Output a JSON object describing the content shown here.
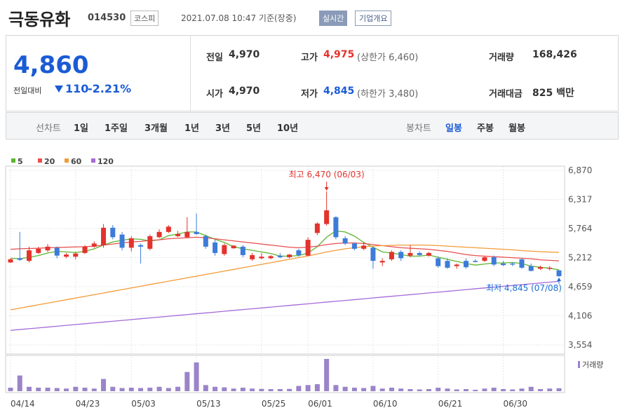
{
  "header": {
    "name": "극동유화",
    "code": "014530",
    "market": "코스피",
    "time": "2021.07.08 10:47 기준(장중)",
    "realtime": "실시간",
    "company": "기업개요"
  },
  "quote": {
    "price": "4,860",
    "diff_label": "전일대비",
    "diff": "110",
    "rate": "-2.21%",
    "items": [
      {
        "label": "전일",
        "value": "4,970"
      },
      {
        "label": "고가",
        "value": "4,975",
        "extra": "(상한가 6,460)"
      },
      {
        "label": "거래량",
        "value": "168,426"
      },
      {
        "label": "시가",
        "value": "4,970"
      },
      {
        "label": "저가",
        "value": "4,845",
        "extra": "(하한가 3,480)"
      },
      {
        "label": "거래대금",
        "value": "825 백만"
      }
    ]
  },
  "tabs": {
    "line": "선차트",
    "line_periods": [
      "1일",
      "1주일",
      "3개월",
      "1년",
      "3년",
      "5년",
      "10년"
    ],
    "candle": "봉차트",
    "candle_periods": [
      "일봉",
      "주봉",
      "월봉"
    ]
  },
  "chart_data": {
    "type": "candlestick",
    "categories": [
      "04/14",
      null,
      null,
      null,
      null,
      null,
      null,
      "04/23",
      null,
      null,
      null,
      null,
      null,
      "05/03",
      null,
      null,
      null,
      null,
      null,
      null,
      "05/13",
      null,
      null,
      null,
      null,
      null,
      null,
      "05/25",
      null,
      null,
      null,
      null,
      "06/01",
      null,
      null,
      null,
      null,
      null,
      null,
      "06/10",
      null,
      null,
      null,
      null,
      null,
      null,
      "06/21",
      null,
      null,
      null,
      null,
      null,
      null,
      "06/30",
      null,
      null,
      null,
      null,
      null,
      null
    ],
    "candles": {
      "open": [
        5120,
        5200,
        5150,
        5300,
        5350,
        5400,
        5230,
        5230,
        5300,
        5420,
        5450,
        5780,
        5650,
        5400,
        5450,
        5380,
        5600,
        5700,
        5620,
        5600,
        5700,
        5620,
        5500,
        5280,
        5390,
        5420,
        5180,
        5200,
        5200,
        5250,
        5220,
        5350,
        5250,
        5680,
        5850,
        5980,
        5580,
        5480,
        5380,
        5400,
        5120,
        5180,
        5320,
        5250,
        5300,
        5250,
        5200,
        5150,
        5050,
        5150,
        5150,
        5150,
        5220,
        5100,
        5100,
        5180,
        5050,
        5000,
        5000,
        4970
      ],
      "high": [
        5200,
        5700,
        5420,
        5420,
        5470,
        5420,
        5300,
        5320,
        5450,
        5520,
        5850,
        5830,
        5700,
        5620,
        5480,
        5650,
        5750,
        5830,
        5720,
        5980,
        6050,
        5650,
        5550,
        5480,
        5450,
        5450,
        5300,
        5300,
        5260,
        5300,
        5280,
        5380,
        5600,
        5880,
        6470,
        6000,
        5620,
        5500,
        5500,
        5420,
        5200,
        5350,
        5350,
        5450,
        5330,
        5320,
        5230,
        5200,
        5100,
        5200,
        5180,
        5230,
        5250,
        5150,
        5120,
        5200,
        5100,
        5060,
        5050,
        4975
      ],
      "low": [
        5110,
        5150,
        5120,
        5280,
        5320,
        5200,
        5200,
        5180,
        5280,
        5400,
        5400,
        5560,
        5350,
        5330,
        5100,
        5350,
        5580,
        5680,
        5600,
        5580,
        5640,
        5380,
        5250,
        5250,
        5380,
        5220,
        5150,
        5180,
        5180,
        5200,
        5200,
        5230,
        5240,
        5640,
        5820,
        5560,
        5450,
        5350,
        5350,
        5000,
        5050,
        5150,
        5150,
        5220,
        5250,
        5230,
        5020,
        5000,
        5000,
        5000,
        5120,
        5130,
        5050,
        5050,
        5050,
        5000,
        4950,
        4980,
        4970,
        4845
      ],
      "close": [
        5180,
        5170,
        5350,
        5380,
        5420,
        5250,
        5270,
        5290,
        5420,
        5480,
        5780,
        5600,
        5400,
        5580,
        5420,
        5620,
        5700,
        5800,
        5660,
        5700,
        5660,
        5420,
        5300,
        5450,
        5440,
        5260,
        5260,
        5230,
        5240,
        5220,
        5270,
        5260,
        5550,
        5860,
        6110,
        5600,
        5480,
        5380,
        5440,
        5150,
        5150,
        5320,
        5200,
        5300,
        5260,
        5300,
        5050,
        5020,
        5080,
        5030,
        5130,
        5220,
        5080,
        5070,
        5080,
        5020,
        4960,
        5030,
        5020,
        4860
      ]
    },
    "up_color": "#e4322d",
    "down_color": "#3d7bd9",
    "series": [
      {
        "name": "5",
        "color": "#5cb531",
        "values": [
          5200,
          5190,
          5220,
          5250,
          5300,
          5330,
          5320,
          5310,
          5330,
          5380,
          5450,
          5510,
          5540,
          5570,
          5560,
          5530,
          5550,
          5630,
          5660,
          5700,
          5700,
          5630,
          5560,
          5500,
          5420,
          5380,
          5350,
          5320,
          5290,
          5240,
          5240,
          5250,
          5300,
          5420,
          5600,
          5720,
          5700,
          5620,
          5500,
          5410,
          5320,
          5300,
          5270,
          5240,
          5240,
          5260,
          5220,
          5180,
          5140,
          5100,
          5070,
          5090,
          5110,
          5110,
          5120,
          5100,
          5050,
          5030,
          5010,
          4980
        ]
      },
      {
        "name": "20",
        "color": "#e84e4e",
        "values": [
          5370,
          5380,
          5385,
          5390,
          5400,
          5405,
          5410,
          5415,
          5420,
          5430,
          5450,
          5470,
          5490,
          5510,
          5520,
          5540,
          5550,
          5570,
          5580,
          5590,
          5600,
          5590,
          5570,
          5550,
          5530,
          5510,
          5490,
          5470,
          5450,
          5430,
          5410,
          5400,
          5410,
          5430,
          5460,
          5480,
          5490,
          5490,
          5480,
          5460,
          5440,
          5420,
          5400,
          5390,
          5380,
          5370,
          5350,
          5330,
          5300,
          5270,
          5250,
          5240,
          5230,
          5220,
          5210,
          5200,
          5190,
          5170,
          5160,
          5150
        ]
      },
      {
        "name": "60",
        "color": "#f39b38",
        "values": [
          4220,
          4252,
          4284,
          4316,
          4348,
          4380,
          4412,
          4444,
          4476,
          4508,
          4540,
          4572,
          4604,
          4636,
          4668,
          4700,
          4732,
          4764,
          4796,
          4828,
          4860,
          4892,
          4924,
          4956,
          4988,
          5020,
          5052,
          5084,
          5116,
          5148,
          5180,
          5212,
          5244,
          5280,
          5320,
          5350,
          5380,
          5400,
          5420,
          5430,
          5440,
          5445,
          5450,
          5450,
          5450,
          5448,
          5440,
          5430,
          5420,
          5410,
          5400,
          5390,
          5380,
          5370,
          5360,
          5345,
          5335,
          5325,
          5318,
          5310
        ]
      },
      {
        "name": "120",
        "color": "#a56ad9",
        "values": [
          3830,
          3846,
          3862,
          3877,
          3893,
          3909,
          3925,
          3940,
          3956,
          3972,
          3988,
          4004,
          4019,
          4035,
          4051,
          4067,
          4082,
          4098,
          4114,
          4130,
          4146,
          4161,
          4177,
          4193,
          4209,
          4225,
          4240,
          4256,
          4272,
          4288,
          4304,
          4319,
          4335,
          4351,
          4367,
          4383,
          4398,
          4414,
          4430,
          4446,
          4462,
          4477,
          4493,
          4509,
          4525,
          4541,
          4556,
          4572,
          4588,
          4604,
          4620,
          4635,
          4651,
          4667,
          4683,
          4699,
          4714,
          4730,
          4746,
          4762
        ]
      }
    ],
    "volume": {
      "name": "거래량",
      "color": "#9b84c9",
      "values": [
        200000,
        900000,
        250000,
        200000,
        200000,
        180000,
        150000,
        250000,
        200000,
        150000,
        700000,
        250000,
        180000,
        200000,
        180000,
        200000,
        250000,
        180000,
        250000,
        1100000,
        1650000,
        350000,
        250000,
        220000,
        150000,
        200000,
        150000,
        130000,
        120000,
        120000,
        130000,
        300000,
        350000,
        400000,
        1850000,
        350000,
        250000,
        200000,
        180000,
        300000,
        150000,
        200000,
        150000,
        120000,
        100000,
        120000,
        200000,
        150000,
        100000,
        120000,
        80000,
        150000,
        200000,
        120000,
        100000,
        150000,
        250000,
        120000,
        150000,
        168426
      ]
    },
    "ylim": [
      3381,
      7043
    ],
    "yticks": [
      {
        "value": 3554,
        "label": "3,554"
      },
      {
        "value": 4106,
        "label": "4,106"
      },
      {
        "value": 4659,
        "label": "4,659"
      },
      {
        "value": 5212,
        "label": "5,212"
      },
      {
        "value": 5764,
        "label": "5,764"
      },
      {
        "value": 6317,
        "label": "6,317"
      },
      {
        "value": 6870,
        "label": "6,870"
      }
    ],
    "annotations": [
      {
        "text": "최고 6,470 (06/03)",
        "index": 34,
        "value": 6470,
        "color": "#e4322d"
      },
      {
        "text": "최저 4,845 (07/08)",
        "index": 59,
        "value": 4845,
        "color": "#1a6fd6"
      }
    ]
  }
}
